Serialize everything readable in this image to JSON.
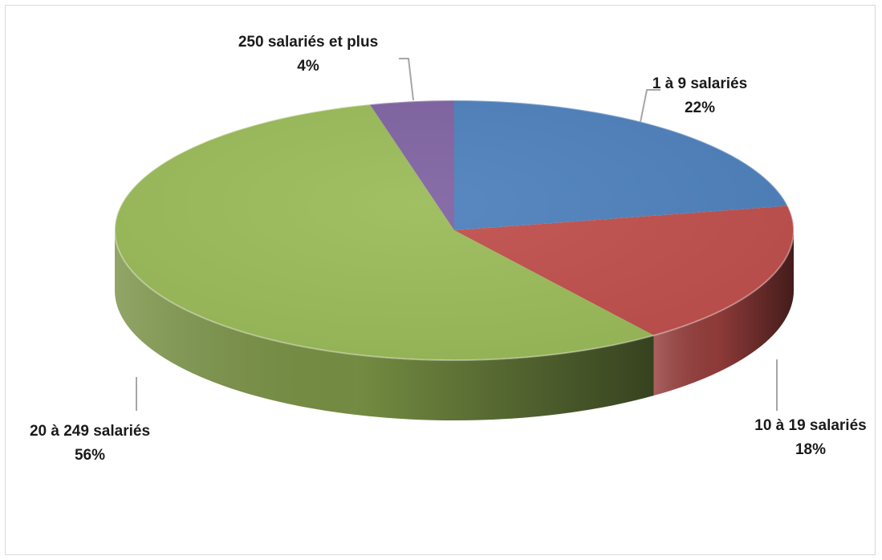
{
  "chart_data": {
    "type": "pie",
    "title": "",
    "categories": [
      "1 à 9 salariés",
      "10 à 19 salariés",
      "20 à 249 salariés",
      "250 salariés et plus"
    ],
    "values": [
      22,
      18,
      56,
      4
    ],
    "percent_labels": [
      "22%",
      "18%",
      "56%",
      "4%"
    ],
    "colors": [
      "#4F81BD",
      "#C0504D",
      "#9BBB59",
      "#8064A2"
    ],
    "three_d": true,
    "legend": "none"
  }
}
